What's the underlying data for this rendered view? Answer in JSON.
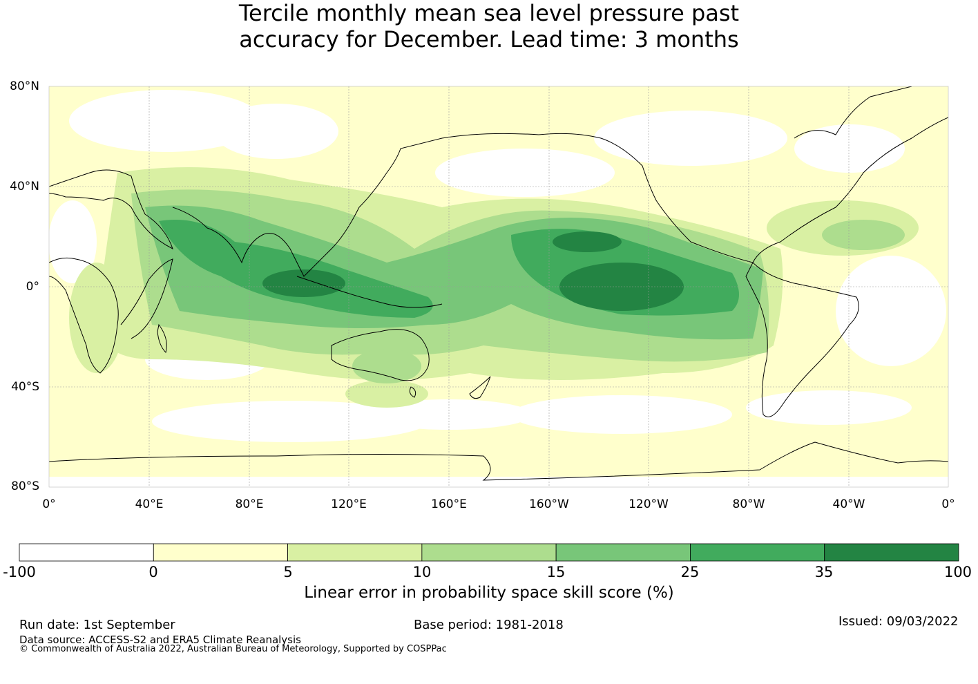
{
  "title": {
    "line1": "Tercile monthly mean sea level pressure past",
    "line2": "accuracy for December. Lead time: 3 months"
  },
  "map": {
    "lat_labels": [
      "80°N",
      "40°N",
      "0°",
      "40°S",
      "80°S"
    ],
    "lon_labels": [
      "0°",
      "40°E",
      "80°E",
      "120°E",
      "160°E",
      "160°W",
      "120°W",
      "80°W",
      "40°W",
      "0°"
    ],
    "projection": "equirectangular, centred on 180°",
    "grid": true
  },
  "colorbar": {
    "ticks": [
      "-100",
      "0",
      "5",
      "10",
      "15",
      "25",
      "35",
      "100"
    ],
    "colors": [
      "#ffffff",
      "#ffffcc",
      "#d9f0a3",
      "#addd8e",
      "#78c679",
      "#41ab5d",
      "#238443"
    ],
    "label": "Linear error in probability space skill score (%)"
  },
  "footer": {
    "run_date": "Run date: 1st September",
    "base_period": "Base period: 1981-2018",
    "issued": "Issued: 09/03/2022",
    "data_source": "Data source: ACCESS-S2 and ERA5 Climate Reanalysis",
    "copyright": "© Commonwealth of Australia 2022, Australian Bureau of Meteorology, Supported by COSPPac"
  }
}
